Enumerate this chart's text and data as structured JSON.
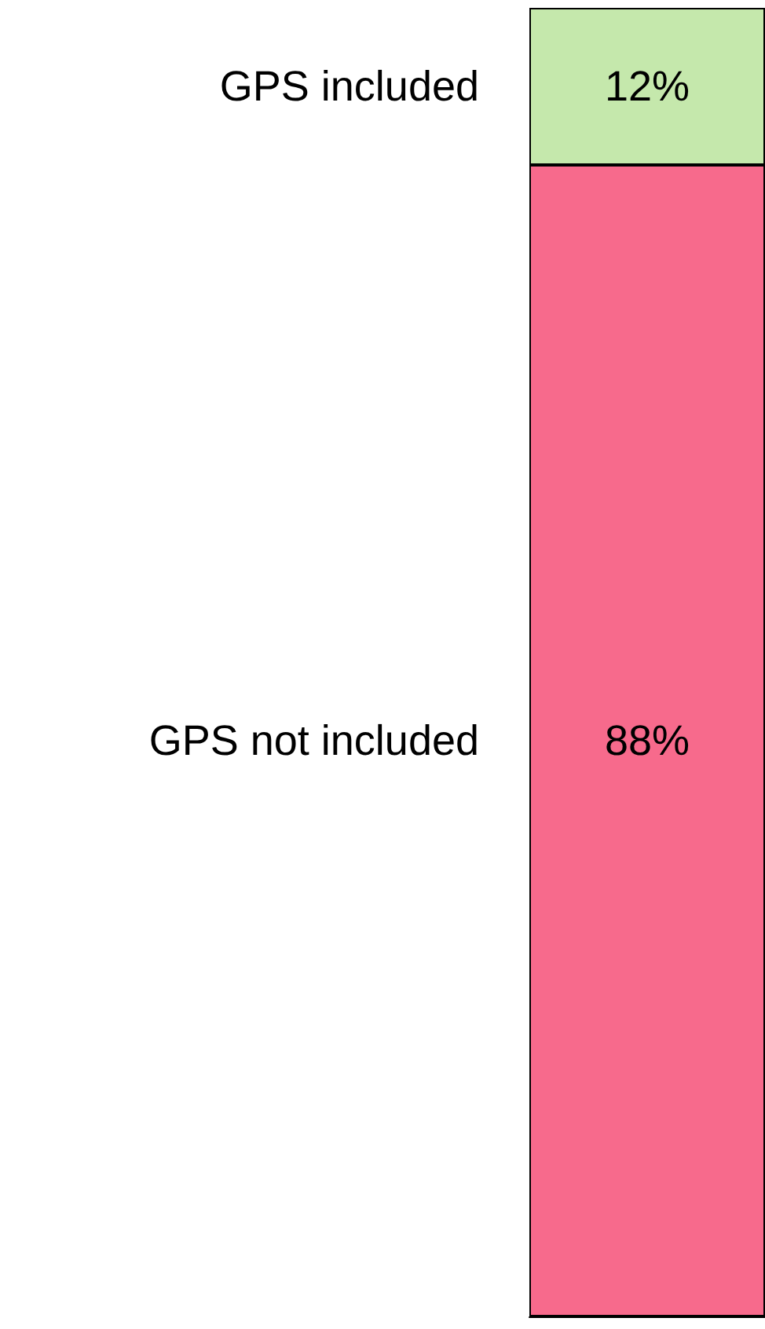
{
  "chart_data": {
    "type": "bar",
    "stacked": true,
    "categories": [
      null
    ],
    "series": [
      {
        "name": "GPS not included",
        "color": "#f76a8c",
        "values": [
          88
        ],
        "value_labels": [
          "88%"
        ]
      },
      {
        "name": "GPS included",
        "color": "#c5e8ac",
        "values": [
          12
        ],
        "value_labels": [
          "12%"
        ]
      }
    ]
  }
}
